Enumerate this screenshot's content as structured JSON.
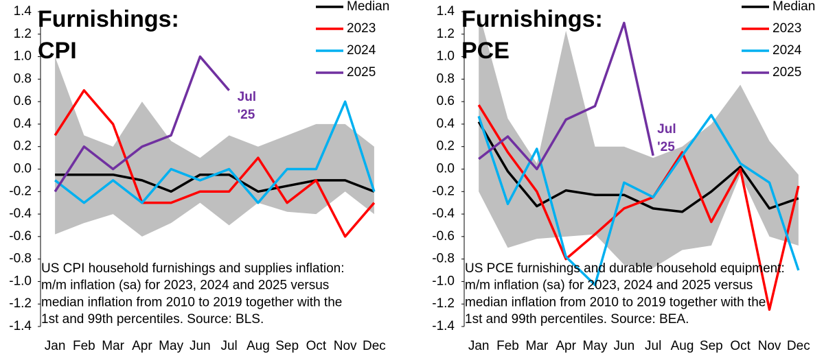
{
  "chart_data": [
    {
      "type": "line",
      "title": [
        "Furnishings:",
        "CPI"
      ],
      "caption": [
        "US CPI household furnishings and supplies inflation:",
        "m/m inflation (sa) for 2023, 2024 and 2025 versus",
        "median inflation from 2010 to 2019 together with the",
        "1st and 99th percentiles. Source: BLS."
      ],
      "annotation": [
        "Jul",
        "'25"
      ],
      "categories": [
        "Jan",
        "Feb",
        "Mar",
        "Apr",
        "May",
        "Jun",
        "Jul",
        "Aug",
        "Sep",
        "Oct",
        "Nov",
        "Dec"
      ],
      "band": {
        "color": "#bfbfbf",
        "upper": [
          1.0,
          0.3,
          0.2,
          0.6,
          0.25,
          0.1,
          0.3,
          0.2,
          0.3,
          0.4,
          0.4,
          0.2
        ],
        "lower": [
          -0.58,
          -0.48,
          -0.4,
          -0.6,
          -0.48,
          -0.3,
          -0.5,
          -0.3,
          -0.38,
          -0.4,
          -0.2,
          -0.4
        ]
      },
      "series": [
        {
          "name": "Median",
          "color": "#000000",
          "values": [
            -0.05,
            -0.05,
            -0.05,
            -0.1,
            -0.2,
            -0.05,
            -0.05,
            -0.2,
            -0.15,
            -0.1,
            -0.1,
            -0.2
          ]
        },
        {
          "name": "2023",
          "color": "#ff0000",
          "values": [
            0.3,
            0.7,
            0.4,
            -0.3,
            -0.3,
            -0.2,
            -0.2,
            0.1,
            -0.3,
            -0.1,
            -0.6,
            -0.3
          ]
        },
        {
          "name": "2024",
          "color": "#00b0f0",
          "values": [
            -0.1,
            -0.3,
            -0.1,
            -0.3,
            0.0,
            -0.1,
            0.0,
            -0.3,
            0.0,
            0.0,
            0.6,
            -0.2
          ]
        },
        {
          "name": "2025",
          "color": "#7030a0",
          "values": [
            -0.2,
            0.2,
            0.0,
            0.2,
            0.3,
            1.0,
            0.7,
            null,
            null,
            null,
            null,
            null
          ]
        }
      ],
      "ylim": [
        -1.4,
        1.4
      ],
      "yticks": [
        1.4,
        1.2,
        {
          "value": 1.0,
          "label": "1.0"
        },
        0.8,
        0.6,
        0.4,
        0.2,
        {
          "value": 0,
          "label": "0.0"
        },
        -0.2,
        -0.4,
        -0.6,
        -0.8,
        {
          "value": -1.0,
          "label": "-1.0"
        },
        -1.2,
        -1.4
      ],
      "grid": false
    },
    {
      "type": "line",
      "title": [
        "Furnishings:",
        "PCE"
      ],
      "caption": [
        "US PCE furnishings and durable household equipment:",
        "m/m inflation (sa) for 2023, 2024 and 2025 versus",
        "median inflation from 2010 to 2019 together with the",
        "1st and 99th percentiles. Source: BEA."
      ],
      "annotation": [
        "Jul",
        "'25"
      ],
      "categories": [
        "Jan",
        "Feb",
        "Mar",
        "Apr",
        "May",
        "Jun",
        "Jul",
        "Aug",
        "Sep",
        "Oct",
        "Nov",
        "Dec"
      ],
      "band": {
        "color": "#bfbfbf",
        "upper": [
          1.4,
          0.45,
          0.05,
          1.23,
          0.2,
          0.2,
          0.1,
          0.2,
          0.4,
          0.75,
          0.25,
          -0.05
        ],
        "lower": [
          -0.2,
          -0.7,
          -0.62,
          -0.6,
          -0.58,
          -0.85,
          -0.88,
          -0.72,
          -0.68,
          -0.05,
          -0.6,
          -0.68
        ]
      },
      "series": [
        {
          "name": "Median",
          "color": "#000000",
          "values": [
            0.42,
            -0.02,
            -0.33,
            -0.19,
            -0.23,
            -0.23,
            -0.35,
            -0.38,
            -0.2,
            0.02,
            -0.35,
            -0.26
          ]
        },
        {
          "name": "2023",
          "color": "#ff0000",
          "values": [
            0.57,
            0.15,
            -0.2,
            -0.8,
            -0.58,
            -0.35,
            -0.25,
            0.15,
            -0.47,
            0.0,
            -1.25,
            -0.15
          ]
        },
        {
          "name": "2024",
          "color": "#00b0f0",
          "values": [
            0.47,
            -0.31,
            0.18,
            -0.78,
            -1.03,
            -0.12,
            -0.25,
            0.12,
            0.48,
            0.05,
            -0.12,
            -0.9
          ]
        },
        {
          "name": "2025",
          "color": "#7030a0",
          "values": [
            0.09,
            0.29,
            0.0,
            0.44,
            0.56,
            1.3,
            0.12,
            null,
            null,
            null,
            null,
            null
          ]
        }
      ],
      "ylim": [
        -1.4,
        1.4
      ],
      "yticks": [
        1.4,
        1.2,
        {
          "value": 1.0,
          "label": "1.0"
        },
        0.8,
        0.6,
        0.4,
        0.2,
        {
          "value": 0,
          "label": "0.0"
        },
        -0.2,
        -0.4,
        -0.6,
        -0.8,
        {
          "value": -1.0,
          "label": "-1.0"
        },
        -1.2,
        -1.4
      ],
      "grid": false
    }
  ]
}
